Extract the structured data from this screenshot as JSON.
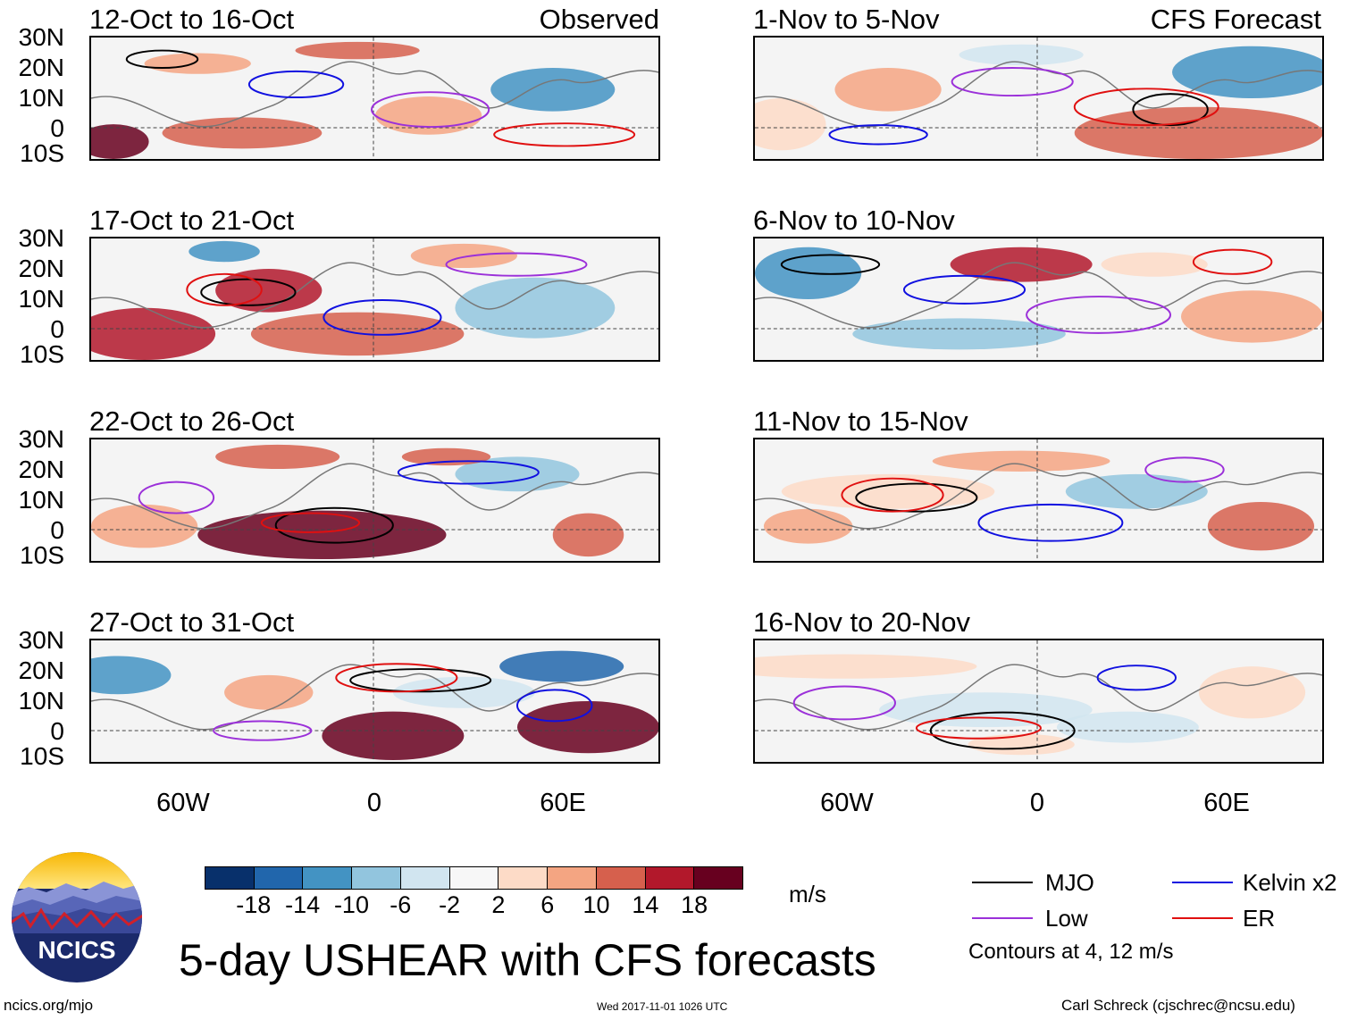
{
  "columns": {
    "left": {
      "tag": "Observed"
    },
    "right": {
      "tag": "CFS Forecast"
    }
  },
  "panels": [
    {
      "title": "12-Oct to 16-Oct"
    },
    {
      "title": "17-Oct to 21-Oct"
    },
    {
      "title": "22-Oct to 26-Oct"
    },
    {
      "title": "27-Oct to 31-Oct"
    },
    {
      "title": "1-Nov to 5-Nov"
    },
    {
      "title": "6-Nov to 10-Nov"
    },
    {
      "title": "11-Nov to 15-Nov"
    },
    {
      "title": "16-Nov to 20-Nov"
    }
  ],
  "y_axis_labels": [
    "30N",
    "20N",
    "10N",
    "0",
    "10S"
  ],
  "x_axis_labels": [
    "60W",
    "0",
    "60E"
  ],
  "colorbar": {
    "units": "m/s",
    "tick_labels": [
      "-18",
      "-14",
      "-10",
      "-6",
      "-2",
      "2",
      "6",
      "10",
      "14",
      "18"
    ],
    "colors": [
      "#08306b",
      "#2166ac",
      "#4393c3",
      "#92c5de",
      "#d1e5f0",
      "#f7f7f7",
      "#fddbc7",
      "#f4a582",
      "#d6604d",
      "#b2182b",
      "#67001f"
    ]
  },
  "legend": {
    "items": [
      {
        "label": "MJO",
        "color": "#000000"
      },
      {
        "label": "Kelvin x2",
        "color": "#1010e0"
      },
      {
        "label": "Low",
        "color": "#9b30d9"
      },
      {
        "label": "ER",
        "color": "#e01010"
      }
    ],
    "note": "Contours at 4, 12 m/s"
  },
  "title": "5-day USHEAR with CFS forecasts",
  "logo": {
    "text": "NCICS"
  },
  "footer": {
    "left": "ncics.org/mjo",
    "center": "Wed 2017-11-01 1026 UTC",
    "right": "Carl Schreck (cjschrec@ncsu.edu)"
  }
}
